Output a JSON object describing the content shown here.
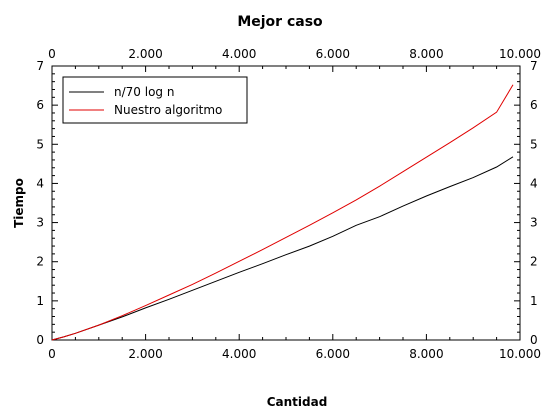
{
  "chart_data": {
    "type": "line",
    "title": "Mejor caso",
    "xlabel": "Cantidad",
    "ylabel": "Tiempo",
    "xlim": [
      0,
      10000
    ],
    "ylim": [
      0,
      7
    ],
    "x_ticks": [
      0,
      2000,
      4000,
      6000,
      8000,
      10000
    ],
    "x_tick_labels": [
      "0",
      "2.000",
      "4.000",
      "6.000",
      "8.000",
      "10.000"
    ],
    "y_ticks": [
      0,
      1,
      2,
      3,
      4,
      5,
      6,
      7
    ],
    "y_tick_labels": [
      "0",
      "1",
      "2",
      "3",
      "4",
      "5",
      "6",
      "7"
    ],
    "grid": false,
    "legend_position": "top-left",
    "series": [
      {
        "name": "n/70 log n",
        "color": "#000000",
        "x": [
          0,
          250,
          500,
          1000,
          1500,
          2000,
          2500,
          3000,
          3500,
          4000,
          4500,
          5000,
          5500,
          6000,
          6500,
          7000,
          7500,
          8000,
          8500,
          9000,
          9500,
          9850
        ],
        "y": [
          0,
          0.08,
          0.17,
          0.38,
          0.59,
          0.82,
          1.04,
          1.27,
          1.5,
          1.73,
          1.95,
          2.18,
          2.4,
          2.65,
          2.93,
          3.15,
          3.42,
          3.68,
          3.92,
          4.15,
          4.42,
          4.68
        ]
      },
      {
        "name": "Nuestro algoritmo",
        "color": "#e00000",
        "x": [
          0,
          250,
          500,
          1000,
          1500,
          2000,
          2500,
          3000,
          3500,
          4000,
          4500,
          5000,
          5500,
          6000,
          6500,
          7000,
          7500,
          8000,
          8500,
          9000,
          9500,
          9850
        ],
        "y": [
          0,
          0.08,
          0.17,
          0.38,
          0.62,
          0.88,
          1.15,
          1.42,
          1.71,
          2.01,
          2.31,
          2.62,
          2.93,
          3.25,
          3.58,
          3.93,
          4.3,
          4.67,
          5.04,
          5.42,
          5.82,
          6.52
        ]
      }
    ]
  }
}
